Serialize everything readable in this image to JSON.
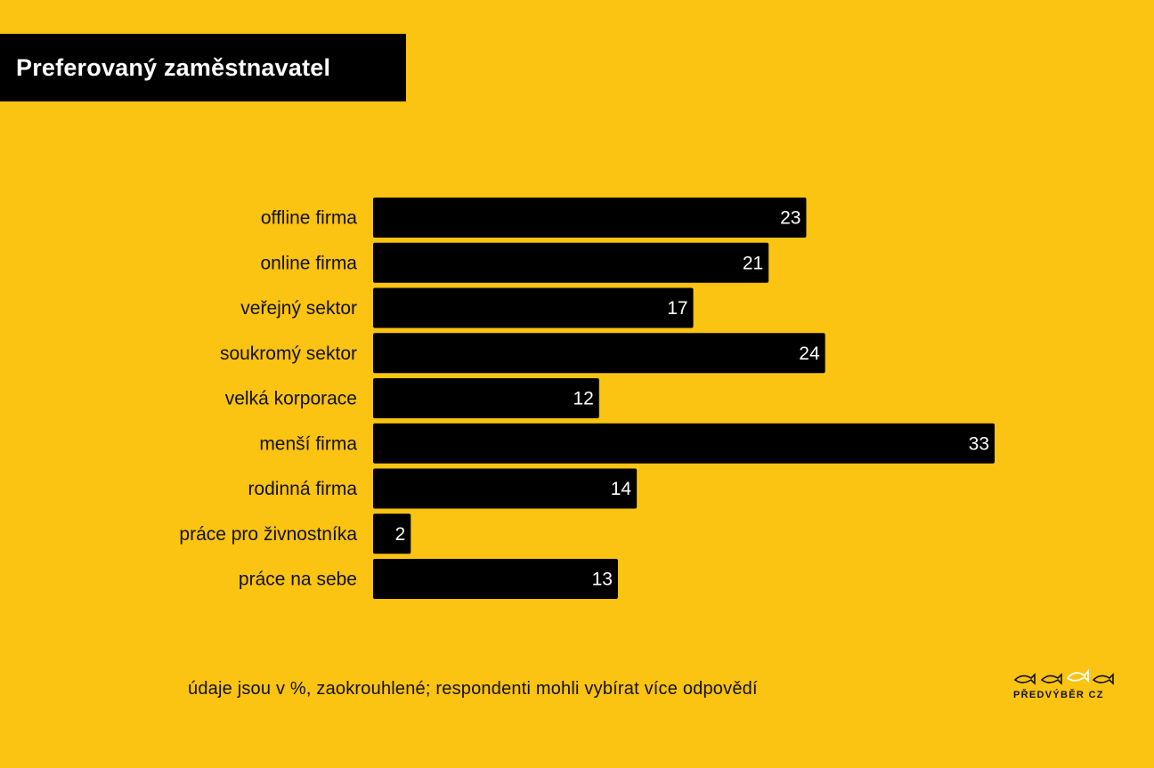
{
  "header": {
    "title": "Preferovaný zaměstnavatel"
  },
  "chart_data": {
    "type": "bar",
    "orientation": "horizontal",
    "title": "Preferovaný zaměstnavatel",
    "categories": [
      "offline firma",
      "online firma",
      "veřejný sektor",
      "soukromý sektor",
      "velká korporace",
      "menší firma",
      "rodinná firma",
      "práce pro živnostníka",
      "práce na sebe"
    ],
    "values": [
      23,
      21,
      17,
      24,
      12,
      33,
      14,
      2,
      13
    ],
    "unit": "%",
    "xlim": [
      0,
      33
    ],
    "grid": false,
    "legend": "none",
    "bar_color": "#000000",
    "background_color": "#FBC312"
  },
  "footnote": "údaje jsou v %, zaokrouhlené; respondenti mohli vybírat více odpovědí",
  "logo": {
    "text": "PŘEDVÝBĚR CZ",
    "icon": "fish-icons"
  }
}
